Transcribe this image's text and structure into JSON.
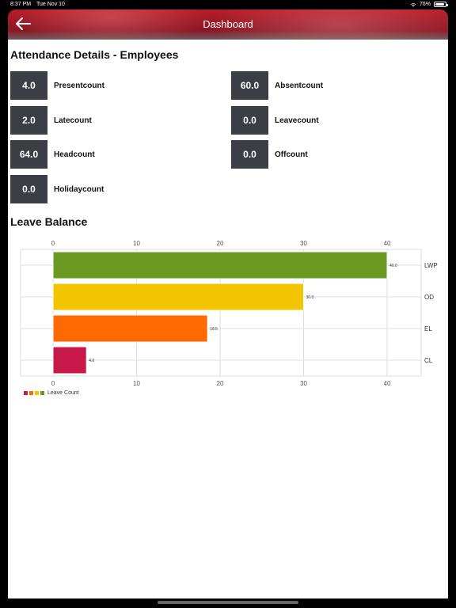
{
  "status_bar": {
    "time": "8:37 PM",
    "date": "Tue Nov 10",
    "battery": "76%"
  },
  "header": {
    "title": "Dashboard",
    "back_icon": "arrow-left-icon"
  },
  "attendance": {
    "title": "Attendance Details - Employees",
    "items": [
      {
        "value": "4.0",
        "label": "Presentcount"
      },
      {
        "value": "60.0",
        "label": "Absentcount"
      },
      {
        "value": "2.0",
        "label": "Latecount"
      },
      {
        "value": "0.0",
        "label": "Leavecount"
      },
      {
        "value": "64.0",
        "label": "Headcount"
      },
      {
        "value": "0.0",
        "label": "Offcount"
      },
      {
        "value": "0.0",
        "label": "Holidaycount"
      }
    ]
  },
  "leave": {
    "title": "Leave Balance"
  },
  "chart_data": {
    "type": "bar",
    "orientation": "horizontal",
    "categories": [
      "LWP",
      "OD",
      "EL",
      "CL"
    ],
    "values": [
      40.0,
      30.0,
      18.5,
      4.0
    ],
    "value_labels": [
      "40.0",
      "30.0",
      "18.5",
      "4.0"
    ],
    "colors": [
      "#6b9a22",
      "#f2c500",
      "#ff6a00",
      "#c8184a"
    ],
    "xlim": [
      0,
      44
    ],
    "ticks": [
      "0",
      "10",
      "20",
      "30",
      "40"
    ],
    "tick_values": [
      0,
      10,
      20,
      30,
      40
    ],
    "legend": "Leave Count",
    "legend_position": "bottom-left",
    "grid": true
  }
}
